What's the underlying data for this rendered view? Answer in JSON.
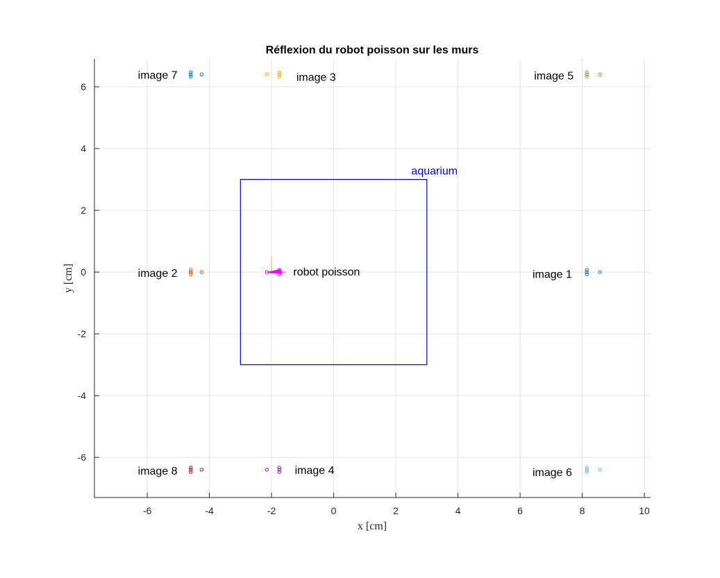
{
  "chart_data": {
    "type": "scatter",
    "title": "Réflexion du robot poisson sur les murs",
    "xlabel": "x [cm]",
    "ylabel": "y [cm]",
    "xlim": [
      -7.7,
      10.2
    ],
    "ylim": [
      -7.3,
      6.9
    ],
    "xticks": [
      -6,
      -4,
      -2,
      0,
      2,
      4,
      6,
      8,
      10
    ],
    "yticks": [
      -6,
      -4,
      -2,
      0,
      2,
      4,
      6
    ],
    "grid": true,
    "aquarium": {
      "label": "aquarium",
      "color": "#0000FF",
      "x": [
        -3,
        3
      ],
      "y": [
        -3,
        3
      ]
    },
    "robot": {
      "label": "robot poisson",
      "color": "#FF00FF",
      "x": [
        -2.15,
        -1.75,
        -1.75,
        -1.75
      ],
      "y": [
        0,
        0.07,
        0,
        -0.07
      ]
    },
    "series": [
      {
        "color": "#0072BD",
        "x": [
          8.15,
          8.15,
          8.15,
          8.57
        ],
        "y": [
          0.07,
          0,
          -0.07,
          0
        ]
      },
      {
        "color": "#D95319",
        "x": [
          -4.6,
          -4.6,
          -4.6,
          -4.25
        ],
        "y": [
          0.07,
          0,
          -0.07,
          0
        ]
      },
      {
        "color": "#EDB120",
        "x": [
          -2.15,
          -1.75,
          -1.75,
          -1.75
        ],
        "y": [
          6.4,
          6.47,
          6.4,
          6.33
        ]
      },
      {
        "color": "#7E2F8E",
        "x": [
          -2.15,
          -1.75,
          -1.75,
          -1.75
        ],
        "y": [
          -6.4,
          -6.33,
          -6.4,
          -6.47
        ]
      },
      {
        "color": "#77AC30",
        "x": [
          8.15,
          8.15,
          8.15,
          8.57
        ],
        "y": [
          6.47,
          6.4,
          6.33,
          6.4
        ]
      },
      {
        "color": "#4DBEEE",
        "x": [
          8.15,
          8.15,
          8.15,
          8.57
        ],
        "y": [
          -6.33,
          -6.4,
          -6.47,
          -6.4
        ]
      },
      {
        "color": "#0072BD",
        "x": [
          -4.6,
          -4.6,
          -4.6,
          -4.25
        ],
        "y": [
          6.47,
          6.4,
          6.33,
          6.4
        ]
      },
      {
        "color": "#A2142F",
        "x": [
          -4.6,
          -4.6,
          -4.6,
          -4.25
        ],
        "y": [
          -6.33,
          -6.4,
          -6.47,
          -6.4
        ]
      }
    ],
    "annotations": [
      {
        "text": "image 1",
        "x": 6.4,
        "y": -0.05
      },
      {
        "text": "image 2",
        "x": -6.3,
        "y": -0.02
      },
      {
        "text": "image 3",
        "x": -1.2,
        "y": 6.33
      },
      {
        "text": "image 4",
        "x": -1.25,
        "y": -6.4
      },
      {
        "text": "image 5",
        "x": 6.45,
        "y": 6.37
      },
      {
        "text": "image 6",
        "x": 6.4,
        "y": -6.47
      },
      {
        "text": "image 7",
        "x": -6.3,
        "y": 6.39
      },
      {
        "text": "image 8",
        "x": -6.3,
        "y": -6.42
      },
      {
        "text": "robot poisson",
        "x": -1.3,
        "y": 0.02
      }
    ]
  }
}
